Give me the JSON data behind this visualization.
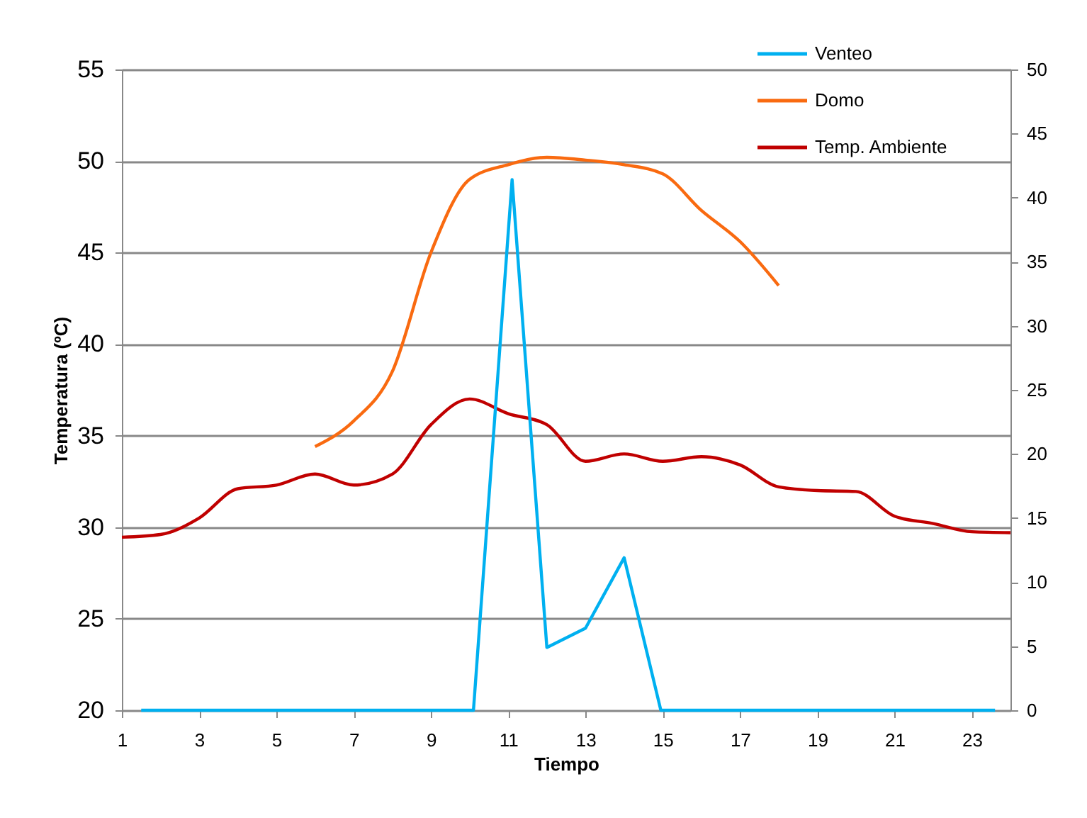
{
  "chart_data": {
    "type": "line",
    "xlabel": "Tiempo",
    "ylabel": "Temperatura (ºC)",
    "x": [
      1,
      2,
      3,
      4,
      5,
      6,
      7,
      8,
      9,
      10,
      11,
      12,
      13,
      14,
      15,
      16,
      17,
      18,
      19,
      20,
      21,
      22,
      23,
      24
    ],
    "series": [
      {
        "name": "Venteo",
        "color": "#00b0f0",
        "axis": "y2",
        "x": [
          1.5,
          10.1,
          11.1,
          12,
          13,
          14,
          14.95,
          23.6
        ],
        "values": [
          0,
          0,
          41.4,
          4.9,
          6.4,
          11.9,
          0,
          0
        ]
      },
      {
        "name": "Domo",
        "color": "#f96a10",
        "x": [
          6,
          7,
          8,
          9,
          10,
          11,
          12,
          13,
          14,
          15,
          16,
          17,
          18
        ],
        "values": [
          34.4,
          35.8,
          38.5,
          45.0,
          49.0,
          49.8,
          50.2,
          50.05,
          49.8,
          49.3,
          47.3,
          45.6,
          43.2
        ]
      },
      {
        "name": "Temp. Ambiente",
        "color": "#c00000",
        "values": [
          29.45,
          29.6,
          30.5,
          32.1,
          32.3,
          32.9,
          32.3,
          32.9,
          35.6,
          37.0,
          36.2,
          35.6,
          33.6,
          34.0,
          33.6,
          33.85,
          33.4,
          32.2,
          32.0,
          31.95,
          30.6,
          30.2,
          29.75,
          29.7
        ]
      }
    ],
    "xlim": [
      1,
      24
    ],
    "xticks": [
      1,
      3,
      5,
      7,
      9,
      11,
      13,
      15,
      17,
      19,
      21,
      23
    ],
    "ylim": [
      20,
      55
    ],
    "yticks": [
      20,
      25,
      30,
      35,
      40,
      45,
      50,
      55
    ],
    "y2lim": [
      0,
      50
    ],
    "y2ticks": [
      0,
      5,
      10,
      15,
      20,
      25,
      30,
      35,
      40,
      45,
      50
    ],
    "grid": "y",
    "legend": "top right",
    "marker": "none",
    "line_style": "solid"
  }
}
